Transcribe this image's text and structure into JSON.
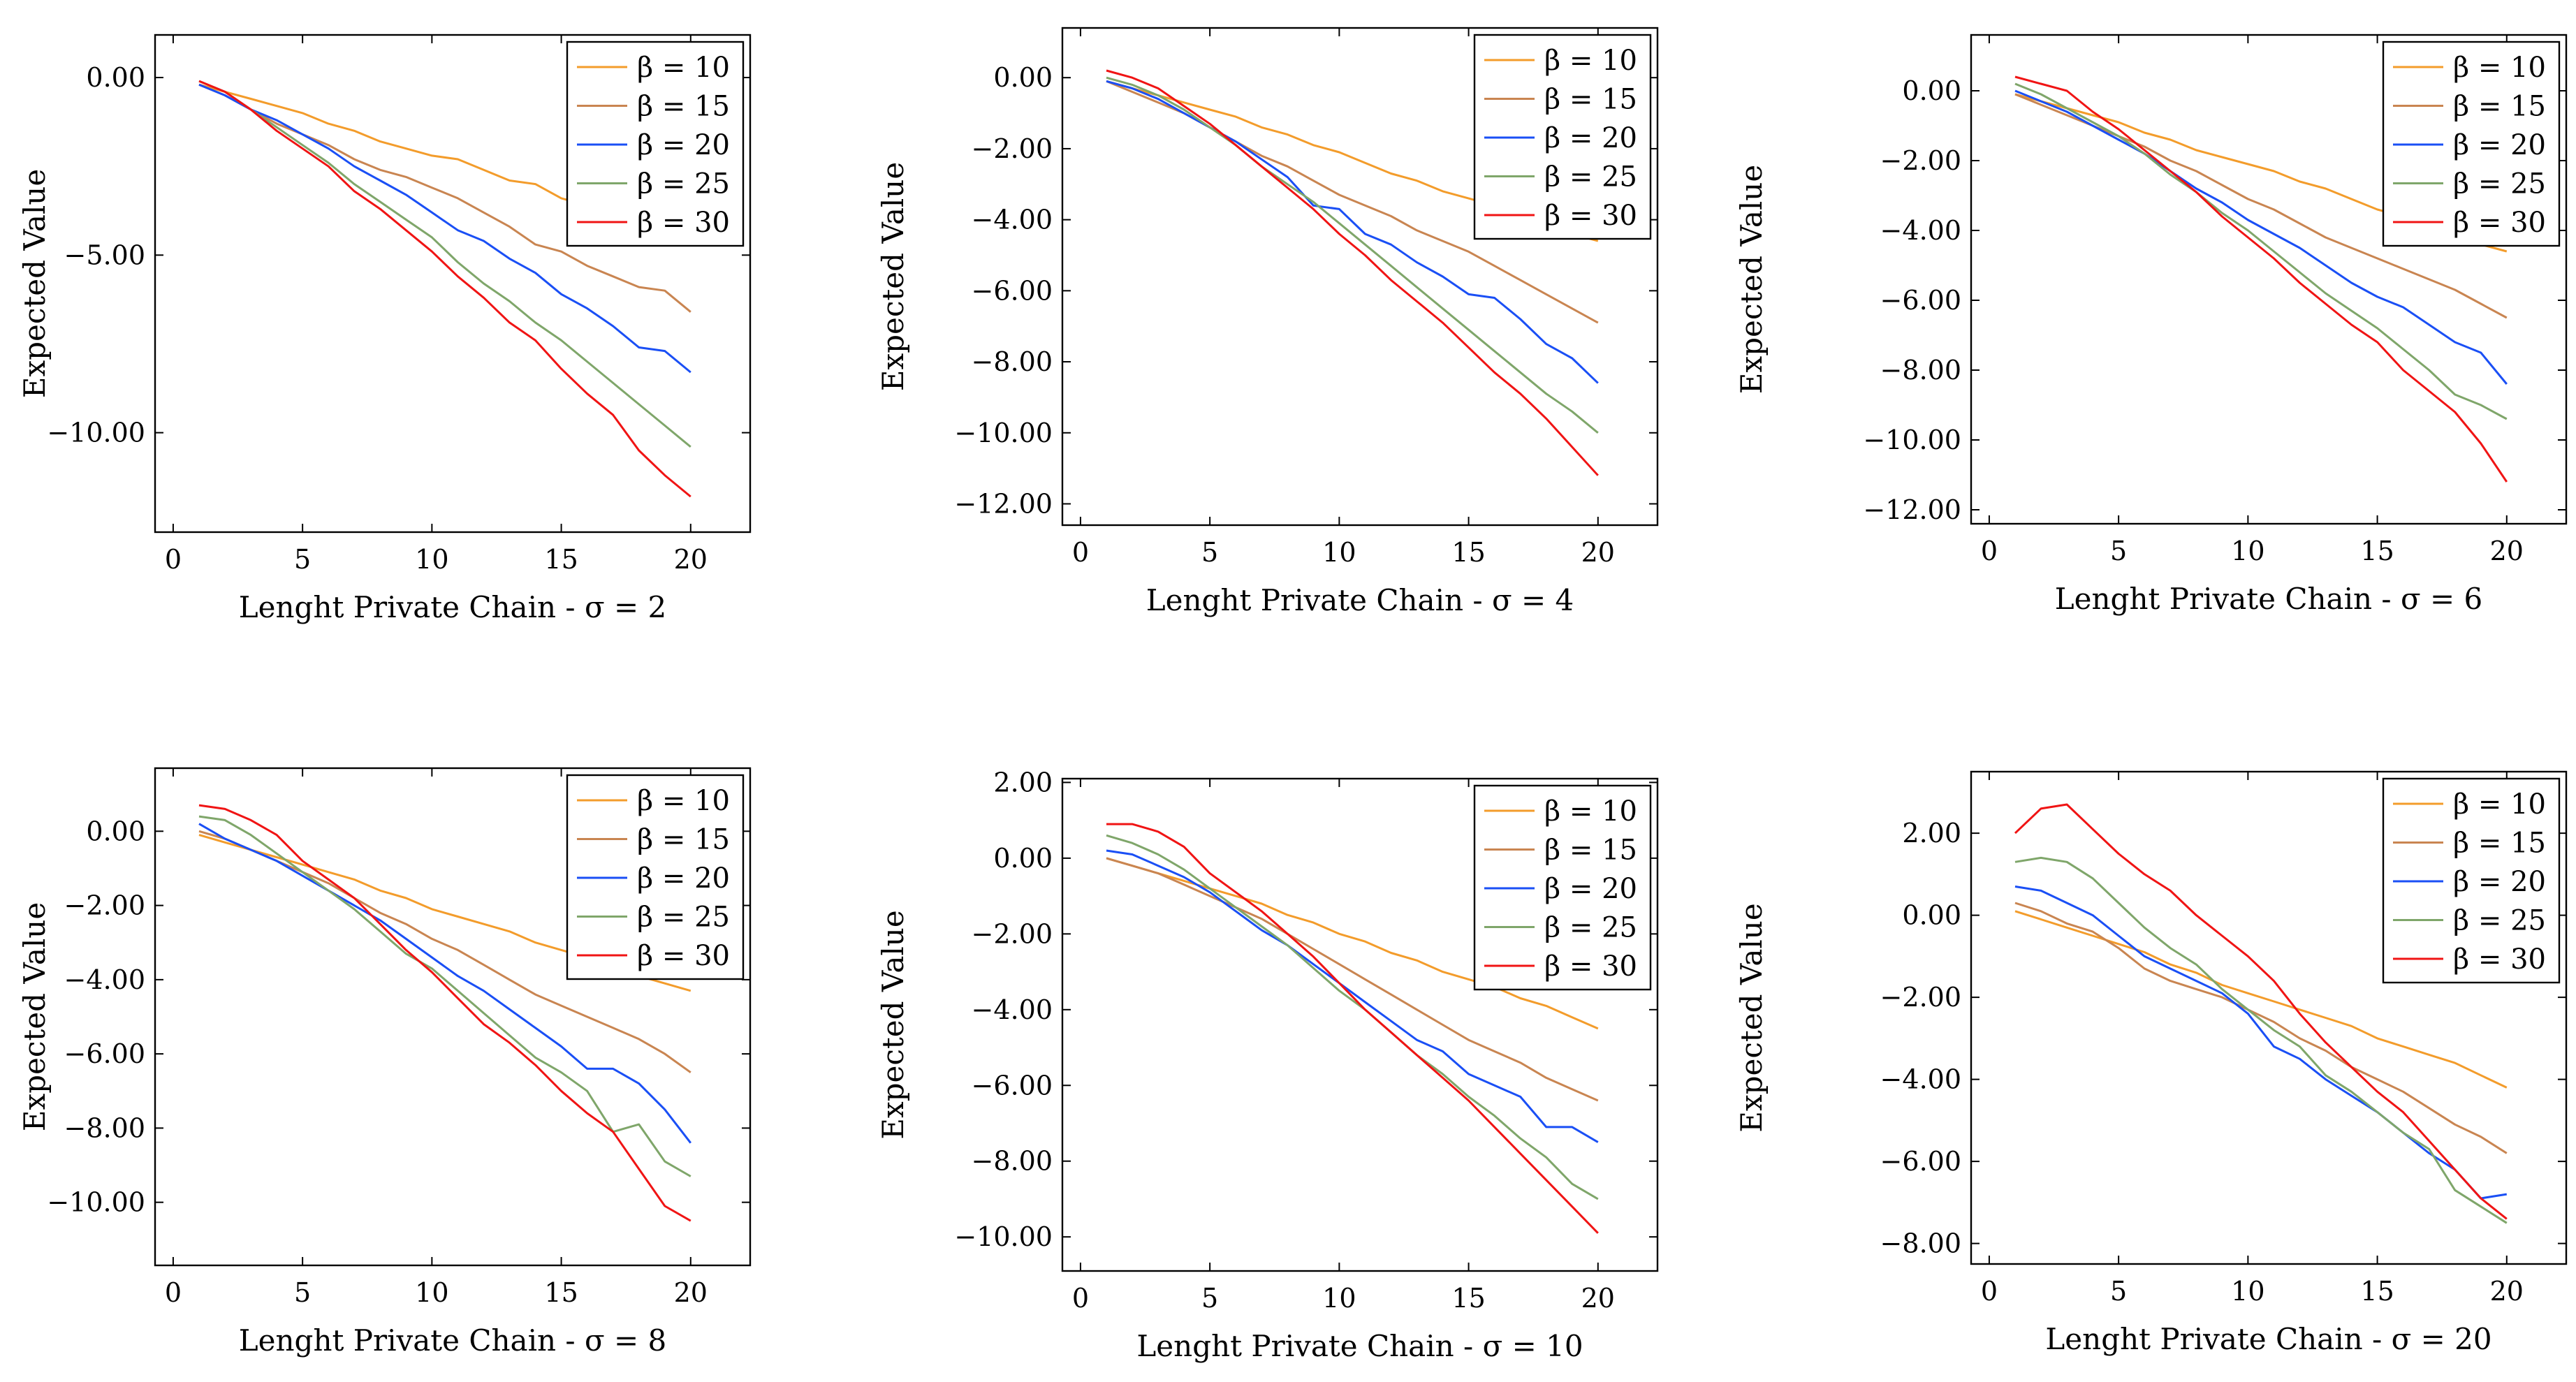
{
  "figure": {
    "ylabel": "Expected Value",
    "legend_prefix": "β = ",
    "series_colors": [
      "#f39c2b",
      "#c98551",
      "#1a4ff5",
      "#7fa66a",
      "#f01414"
    ]
  },
  "chart_data": [
    {
      "type": "line",
      "title": "",
      "xlabel": "Lenght Private Chain - σ = 2",
      "ylabel": "Expected Value",
      "xlim": [
        -0.7,
        22.3
      ],
      "ylim": [
        -12.8,
        1.2
      ],
      "xticks": [
        0,
        5,
        10,
        15,
        20
      ],
      "xtick_labels": [
        "0",
        "5",
        "10",
        "15",
        "20"
      ],
      "yticks": [
        0,
        -5,
        -10
      ],
      "ytick_labels": [
        "0.00",
        "−5.00",
        "−10.00"
      ],
      "legend": "top-right",
      "x": [
        1,
        2,
        3,
        4,
        5,
        6,
        7,
        8,
        9,
        10,
        11,
        12,
        13,
        14,
        15,
        16,
        17,
        18,
        19,
        20
      ],
      "series": [
        {
          "name": "10",
          "values": [
            -0.2,
            -0.4,
            -0.6,
            -0.8,
            -1.0,
            -1.3,
            -1.5,
            -1.8,
            -2.0,
            -2.2,
            -2.3,
            -2.6,
            -2.9,
            -3.0,
            -3.4,
            -3.6,
            -3.9,
            -4.1,
            -4.3,
            -4.6
          ]
        },
        {
          "name": "15",
          "values": [
            -0.2,
            -0.5,
            -0.9,
            -1.3,
            -1.6,
            -1.9,
            -2.3,
            -2.6,
            -2.8,
            -3.1,
            -3.4,
            -3.8,
            -4.2,
            -4.7,
            -4.9,
            -5.3,
            -5.6,
            -5.9,
            -6.0,
            -6.6
          ]
        },
        {
          "name": "20",
          "values": [
            -0.2,
            -0.5,
            -0.9,
            -1.2,
            -1.6,
            -2.0,
            -2.5,
            -2.9,
            -3.3,
            -3.8,
            -4.3,
            -4.6,
            -5.1,
            -5.5,
            -6.1,
            -6.5,
            -7.0,
            -7.6,
            -7.7,
            -8.3
          ]
        },
        {
          "name": "25",
          "values": [
            -0.1,
            -0.4,
            -0.9,
            -1.4,
            -1.9,
            -2.4,
            -3.0,
            -3.5,
            -4.0,
            -4.5,
            -5.2,
            -5.8,
            -6.3,
            -6.9,
            -7.4,
            -8.0,
            -8.6,
            -9.2,
            -9.8,
            -10.4
          ]
        },
        {
          "name": "30",
          "values": [
            -0.1,
            -0.4,
            -0.9,
            -1.5,
            -2.0,
            -2.5,
            -3.2,
            -3.7,
            -4.3,
            -4.9,
            -5.6,
            -6.2,
            -6.9,
            -7.4,
            -8.2,
            -8.9,
            -9.5,
            -10.5,
            -11.2,
            -11.8
          ]
        }
      ]
    },
    {
      "type": "line",
      "title": "",
      "xlabel": "Lenght Private Chain - σ = 4",
      "ylabel": "Expected Value",
      "xlim": [
        -0.7,
        22.3
      ],
      "ylim": [
        -12.6,
        1.4
      ],
      "xticks": [
        0,
        5,
        10,
        15,
        20
      ],
      "xtick_labels": [
        "0",
        "5",
        "10",
        "15",
        "20"
      ],
      "yticks": [
        0,
        -2,
        -4,
        -6,
        -8,
        -10,
        -12
      ],
      "ytick_labels": [
        "0.00",
        "−2.00",
        "−4.00",
        "−6.00",
        "−8.00",
        "−10.00",
        "−12.00"
      ],
      "legend": "top-right",
      "x": [
        1,
        2,
        3,
        4,
        5,
        6,
        7,
        8,
        9,
        10,
        11,
        12,
        13,
        14,
        15,
        16,
        17,
        18,
        19,
        20
      ],
      "series": [
        {
          "name": "10",
          "values": [
            -0.1,
            -0.3,
            -0.5,
            -0.7,
            -0.9,
            -1.1,
            -1.4,
            -1.6,
            -1.9,
            -2.1,
            -2.4,
            -2.7,
            -2.9,
            -3.2,
            -3.4,
            -3.6,
            -3.9,
            -4.1,
            -4.4,
            -4.6
          ]
        },
        {
          "name": "15",
          "values": [
            -0.1,
            -0.4,
            -0.7,
            -1.0,
            -1.4,
            -1.8,
            -2.2,
            -2.5,
            -2.9,
            -3.3,
            -3.6,
            -3.9,
            -4.3,
            -4.6,
            -4.9,
            -5.3,
            -5.7,
            -6.1,
            -6.5,
            -6.9
          ]
        },
        {
          "name": "20",
          "values": [
            -0.1,
            -0.3,
            -0.6,
            -1.0,
            -1.4,
            -1.8,
            -2.3,
            -2.8,
            -3.6,
            -3.7,
            -4.4,
            -4.7,
            -5.2,
            -5.6,
            -6.1,
            -6.2,
            -6.8,
            -7.5,
            -7.9,
            -8.6
          ]
        },
        {
          "name": "25",
          "values": [
            0.0,
            -0.2,
            -0.5,
            -0.9,
            -1.4,
            -1.9,
            -2.5,
            -3.0,
            -3.5,
            -4.1,
            -4.7,
            -5.3,
            -5.9,
            -6.5,
            -7.1,
            -7.7,
            -8.3,
            -8.9,
            -9.4,
            -10.0
          ]
        },
        {
          "name": "30",
          "values": [
            0.2,
            0.0,
            -0.3,
            -0.8,
            -1.3,
            -1.9,
            -2.5,
            -3.1,
            -3.7,
            -4.4,
            -5.0,
            -5.7,
            -6.3,
            -6.9,
            -7.6,
            -8.3,
            -8.9,
            -9.6,
            -10.4,
            -11.2
          ]
        }
      ]
    },
    {
      "type": "line",
      "title": "",
      "xlabel": "Lenght Private Chain - σ = 6",
      "ylabel": "Expected Value",
      "xlim": [
        -0.7,
        22.3
      ],
      "ylim": [
        -12.4,
        1.6
      ],
      "xticks": [
        0,
        5,
        10,
        15,
        20
      ],
      "xtick_labels": [
        "0",
        "5",
        "10",
        "15",
        "20"
      ],
      "yticks": [
        0,
        -2,
        -4,
        -6,
        -8,
        -10,
        -12
      ],
      "ytick_labels": [
        "0.00",
        "−2.00",
        "−4.00",
        "−6.00",
        "−8.00",
        "−10.00",
        "−12.00"
      ],
      "legend": "top-right",
      "x": [
        1,
        2,
        3,
        4,
        5,
        6,
        7,
        8,
        9,
        10,
        11,
        12,
        13,
        14,
        15,
        16,
        17,
        18,
        19,
        20
      ],
      "series": [
        {
          "name": "10",
          "values": [
            -0.1,
            -0.3,
            -0.5,
            -0.7,
            -0.9,
            -1.2,
            -1.4,
            -1.7,
            -1.9,
            -2.1,
            -2.3,
            -2.6,
            -2.8,
            -3.1,
            -3.4,
            -3.6,
            -3.9,
            -4.1,
            -4.4,
            -4.6
          ]
        },
        {
          "name": "15",
          "values": [
            -0.1,
            -0.4,
            -0.7,
            -1.0,
            -1.3,
            -1.6,
            -2.0,
            -2.3,
            -2.7,
            -3.1,
            -3.4,
            -3.8,
            -4.2,
            -4.5,
            -4.8,
            -5.1,
            -5.4,
            -5.7,
            -6.1,
            -6.5
          ]
        },
        {
          "name": "20",
          "values": [
            0.0,
            -0.3,
            -0.6,
            -1.0,
            -1.4,
            -1.8,
            -2.3,
            -2.8,
            -3.2,
            -3.7,
            -4.1,
            -4.5,
            -5.0,
            -5.5,
            -5.9,
            -6.2,
            -6.7,
            -7.2,
            -7.5,
            -8.4
          ]
        },
        {
          "name": "25",
          "values": [
            0.2,
            -0.1,
            -0.5,
            -0.9,
            -1.3,
            -1.8,
            -2.4,
            -2.9,
            -3.5,
            -4.0,
            -4.6,
            -5.2,
            -5.8,
            -6.3,
            -6.8,
            -7.4,
            -8.0,
            -8.7,
            -9.0,
            -9.4
          ]
        },
        {
          "name": "30",
          "values": [
            0.4,
            0.2,
            0.0,
            -0.6,
            -1.1,
            -1.7,
            -2.3,
            -2.9,
            -3.6,
            -4.2,
            -4.8,
            -5.5,
            -6.1,
            -6.7,
            -7.2,
            -8.0,
            -8.6,
            -9.2,
            -10.1,
            -11.2
          ]
        }
      ]
    },
    {
      "type": "line",
      "title": "",
      "xlabel": "Lenght Private Chain - σ = 8",
      "ylabel": "Expected Value",
      "xlim": [
        -0.7,
        22.3
      ],
      "ylim": [
        -11.7,
        1.7
      ],
      "xticks": [
        0,
        5,
        10,
        15,
        20
      ],
      "xtick_labels": [
        "0",
        "5",
        "10",
        "15",
        "20"
      ],
      "yticks": [
        0,
        -2,
        -4,
        -6,
        -8,
        -10
      ],
      "ytick_labels": [
        "0.00",
        "−2.00",
        "−4.00",
        "−6.00",
        "−8.00",
        "−10.00"
      ],
      "legend": "top-right",
      "x": [
        1,
        2,
        3,
        4,
        5,
        6,
        7,
        8,
        9,
        10,
        11,
        12,
        13,
        14,
        15,
        16,
        17,
        18,
        19,
        20
      ],
      "series": [
        {
          "name": "10",
          "values": [
            -0.1,
            -0.3,
            -0.5,
            -0.7,
            -0.9,
            -1.1,
            -1.3,
            -1.6,
            -1.8,
            -2.1,
            -2.3,
            -2.5,
            -2.7,
            -3.0,
            -3.2,
            -3.4,
            -3.7,
            -3.9,
            -4.1,
            -4.3
          ]
        },
        {
          "name": "15",
          "values": [
            0.0,
            -0.2,
            -0.5,
            -0.8,
            -1.1,
            -1.4,
            -1.8,
            -2.2,
            -2.5,
            -2.9,
            -3.2,
            -3.6,
            -4.0,
            -4.4,
            -4.7,
            -5.0,
            -5.3,
            -5.6,
            -6.0,
            -6.5
          ]
        },
        {
          "name": "20",
          "values": [
            0.2,
            -0.2,
            -0.5,
            -0.8,
            -1.2,
            -1.6,
            -2.0,
            -2.4,
            -2.9,
            -3.4,
            -3.9,
            -4.3,
            -4.8,
            -5.3,
            -5.8,
            -6.4,
            -6.4,
            -6.8,
            -7.5,
            -8.4
          ]
        },
        {
          "name": "25",
          "values": [
            0.4,
            0.3,
            -0.1,
            -0.6,
            -1.1,
            -1.6,
            -2.1,
            -2.7,
            -3.3,
            -3.7,
            -4.3,
            -4.9,
            -5.5,
            -6.1,
            -6.5,
            -7.0,
            -8.1,
            -7.9,
            -8.9,
            -9.3
          ]
        },
        {
          "name": "30",
          "values": [
            0.7,
            0.6,
            0.3,
            -0.1,
            -0.8,
            -1.3,
            -1.8,
            -2.5,
            -3.2,
            -3.8,
            -4.5,
            -5.2,
            -5.7,
            -6.3,
            -7.0,
            -7.6,
            -8.1,
            -9.1,
            -10.1,
            -10.5
          ]
        }
      ]
    },
    {
      "type": "line",
      "title": "",
      "xlabel": "Lenght Private Chain - σ = 10",
      "ylabel": "Expected Value",
      "xlim": [
        -0.7,
        22.3
      ],
      "ylim": [
        -10.9,
        2.1
      ],
      "xticks": [
        0,
        5,
        10,
        15,
        20
      ],
      "xtick_labels": [
        "0",
        "5",
        "10",
        "15",
        "20"
      ],
      "yticks": [
        2,
        0,
        -2,
        -4,
        -6,
        -8,
        -10
      ],
      "ytick_labels": [
        "2.00",
        "0.00",
        "−2.00",
        "−4.00",
        "−6.00",
        "−8.00",
        "−10.00"
      ],
      "legend": "top-right",
      "x": [
        1,
        2,
        3,
        4,
        5,
        6,
        7,
        8,
        9,
        10,
        11,
        12,
        13,
        14,
        15,
        16,
        17,
        18,
        19,
        20
      ],
      "series": [
        {
          "name": "10",
          "values": [
            0.0,
            -0.2,
            -0.4,
            -0.6,
            -0.8,
            -1.0,
            -1.2,
            -1.5,
            -1.7,
            -2.0,
            -2.2,
            -2.5,
            -2.7,
            -3.0,
            -3.2,
            -3.4,
            -3.7,
            -3.9,
            -4.2,
            -4.5
          ]
        },
        {
          "name": "15",
          "values": [
            0.0,
            -0.2,
            -0.4,
            -0.7,
            -1.0,
            -1.3,
            -1.6,
            -2.0,
            -2.4,
            -2.8,
            -3.2,
            -3.6,
            -4.0,
            -4.4,
            -4.8,
            -5.1,
            -5.4,
            -5.8,
            -6.1,
            -6.4
          ]
        },
        {
          "name": "20",
          "values": [
            0.2,
            0.1,
            -0.2,
            -0.5,
            -0.9,
            -1.4,
            -1.9,
            -2.3,
            -2.8,
            -3.3,
            -3.8,
            -4.3,
            -4.8,
            -5.1,
            -5.7,
            -6.0,
            -6.3,
            -7.1,
            -7.1,
            -7.5
          ]
        },
        {
          "name": "25",
          "values": [
            0.6,
            0.4,
            0.1,
            -0.3,
            -0.8,
            -1.3,
            -1.8,
            -2.3,
            -2.9,
            -3.5,
            -4.0,
            -4.6,
            -5.2,
            -5.7,
            -6.3,
            -6.8,
            -7.4,
            -7.9,
            -8.6,
            -9.0
          ]
        },
        {
          "name": "30",
          "values": [
            0.9,
            0.9,
            0.7,
            0.3,
            -0.4,
            -0.9,
            -1.4,
            -2.0,
            -2.6,
            -3.3,
            -4.0,
            -4.6,
            -5.2,
            -5.8,
            -6.4,
            -7.1,
            -7.8,
            -8.5,
            -9.2,
            -9.9
          ]
        }
      ]
    },
    {
      "type": "line",
      "title": "",
      "xlabel": "Lenght Private Chain - σ = 20",
      "ylabel": "Expected Value",
      "xlim": [
        -0.7,
        22.3
      ],
      "ylim": [
        -8.5,
        3.5
      ],
      "xticks": [
        0,
        5,
        10,
        15,
        20
      ],
      "xtick_labels": [
        "0",
        "5",
        "10",
        "15",
        "20"
      ],
      "yticks": [
        2,
        0,
        -2,
        -4,
        -6,
        -8
      ],
      "ytick_labels": [
        "2.00",
        "0.00",
        "−2.00",
        "−4.00",
        "−6.00",
        "−8.00"
      ],
      "legend": "top-right",
      "x": [
        1,
        2,
        3,
        4,
        5,
        6,
        7,
        8,
        9,
        10,
        11,
        12,
        13,
        14,
        15,
        16,
        17,
        18,
        19,
        20
      ],
      "series": [
        {
          "name": "10",
          "values": [
            0.1,
            -0.1,
            -0.3,
            -0.5,
            -0.7,
            -0.9,
            -1.2,
            -1.4,
            -1.7,
            -1.9,
            -2.1,
            -2.3,
            -2.5,
            -2.7,
            -3.0,
            -3.2,
            -3.4,
            -3.6,
            -3.9,
            -4.2
          ]
        },
        {
          "name": "15",
          "values": [
            0.3,
            0.1,
            -0.2,
            -0.4,
            -0.8,
            -1.3,
            -1.6,
            -1.8,
            -2.0,
            -2.3,
            -2.6,
            -3.0,
            -3.3,
            -3.7,
            -4.0,
            -4.3,
            -4.7,
            -5.1,
            -5.4,
            -5.8
          ]
        },
        {
          "name": "20",
          "values": [
            0.7,
            0.6,
            0.3,
            0.0,
            -0.5,
            -1.0,
            -1.3,
            -1.6,
            -1.9,
            -2.4,
            -3.2,
            -3.5,
            -4.0,
            -4.4,
            -4.8,
            -5.3,
            -5.8,
            -6.2,
            -6.9,
            -6.8
          ]
        },
        {
          "name": "25",
          "values": [
            1.3,
            1.4,
            1.3,
            0.9,
            0.3,
            -0.3,
            -0.8,
            -1.2,
            -1.8,
            -2.3,
            -2.8,
            -3.2,
            -3.9,
            -4.3,
            -4.8,
            -5.3,
            -5.7,
            -6.7,
            -7.1,
            -7.5
          ]
        },
        {
          "name": "30",
          "values": [
            2.0,
            2.6,
            2.7,
            2.1,
            1.5,
            1.0,
            0.6,
            0.0,
            -0.5,
            -1.0,
            -1.6,
            -2.4,
            -3.1,
            -3.7,
            -4.3,
            -4.8,
            -5.5,
            -6.2,
            -6.9,
            -7.4
          ]
        }
      ]
    }
  ]
}
